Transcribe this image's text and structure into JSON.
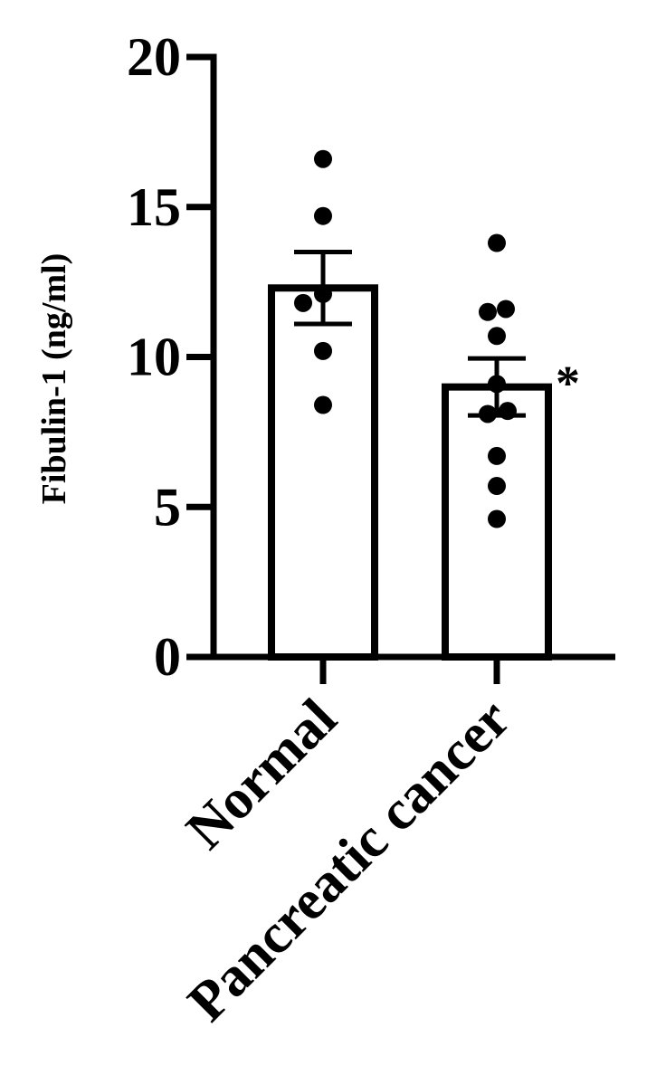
{
  "chart_data": {
    "type": "bar",
    "ylabel": "Fibulin-1  (ng/ml)",
    "xlabel": "",
    "ylim": [
      0,
      20
    ],
    "yticks": [
      0,
      5,
      10,
      15,
      20
    ],
    "grid": false,
    "categories": [
      "Normal",
      "Pancreatic cancer"
    ],
    "values": [
      12.3,
      9.0
    ],
    "error_sem": [
      1.2,
      0.95
    ],
    "points": [
      [
        16.6,
        14.7,
        11.8,
        12.1,
        10.2,
        8.4
      ],
      [
        13.8,
        11.5,
        11.6,
        10.7,
        9.1,
        8.1,
        8.2,
        6.7,
        5.7,
        4.6
      ]
    ],
    "significance": [
      "",
      "*"
    ]
  }
}
